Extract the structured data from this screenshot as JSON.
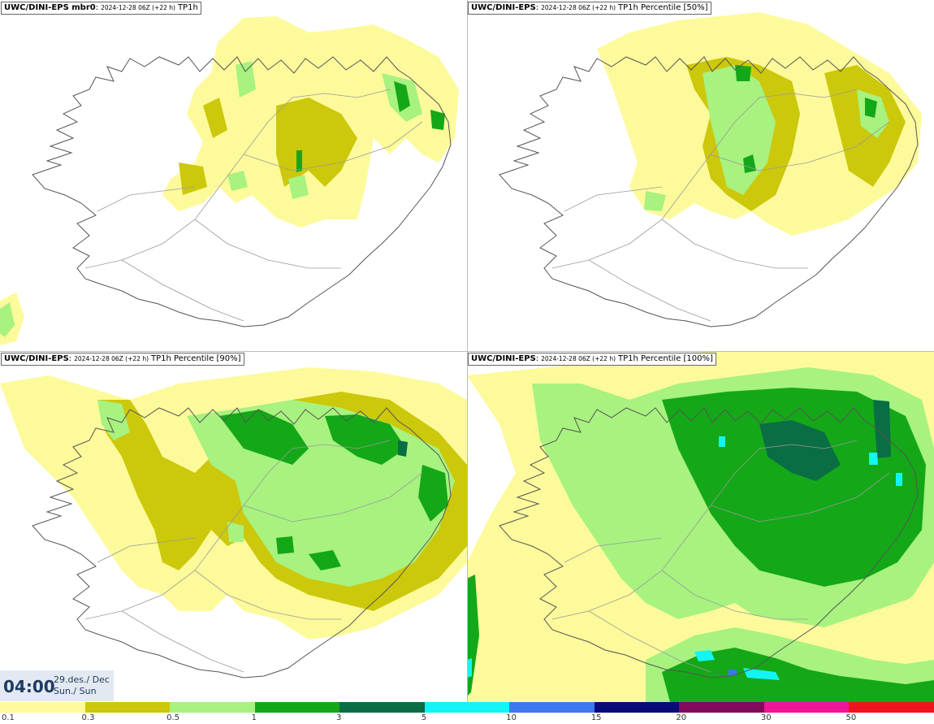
{
  "panels": [
    {
      "model": "UWC/DINI-EPS mbr0",
      "run": "2024-12-28 06Z (+22 h)",
      "field": "TP1h"
    },
    {
      "model": "UWC/DINI-EPS",
      "run": "2024-12-28 06Z (+22 h)",
      "field": "TP1h Percentile [50%]"
    },
    {
      "model": "UWC/DINI-EPS",
      "run": "2024-12-28 06Z (+22 h)",
      "field": "TP1h Percentile [90%]"
    },
    {
      "model": "UWC/DINI-EPS",
      "run": "2024-12-28 06Z (+22 h)",
      "field": "TP1h Percentile [100%]"
    }
  ],
  "valid_time": {
    "time": "04:00",
    "date_line1": "29.des./ Dec",
    "date_line2": "Sun./ Sun"
  },
  "legend": {
    "labels": [
      "0.1",
      "0.3",
      "0.5",
      "1",
      "3",
      "5",
      "10",
      "15",
      "20",
      "30",
      "50"
    ],
    "colors": [
      "#fdfa9b",
      "#ccc80b",
      "#a8f27f",
      "#14a818",
      "#0a6e44",
      "#14f4f4",
      "#3c78f0",
      "#0a0a78",
      "#820a5a",
      "#f01496",
      "#f0141e"
    ]
  },
  "map_colors": {
    "land_outline": "#555555",
    "road": "#9a9a9a"
  }
}
